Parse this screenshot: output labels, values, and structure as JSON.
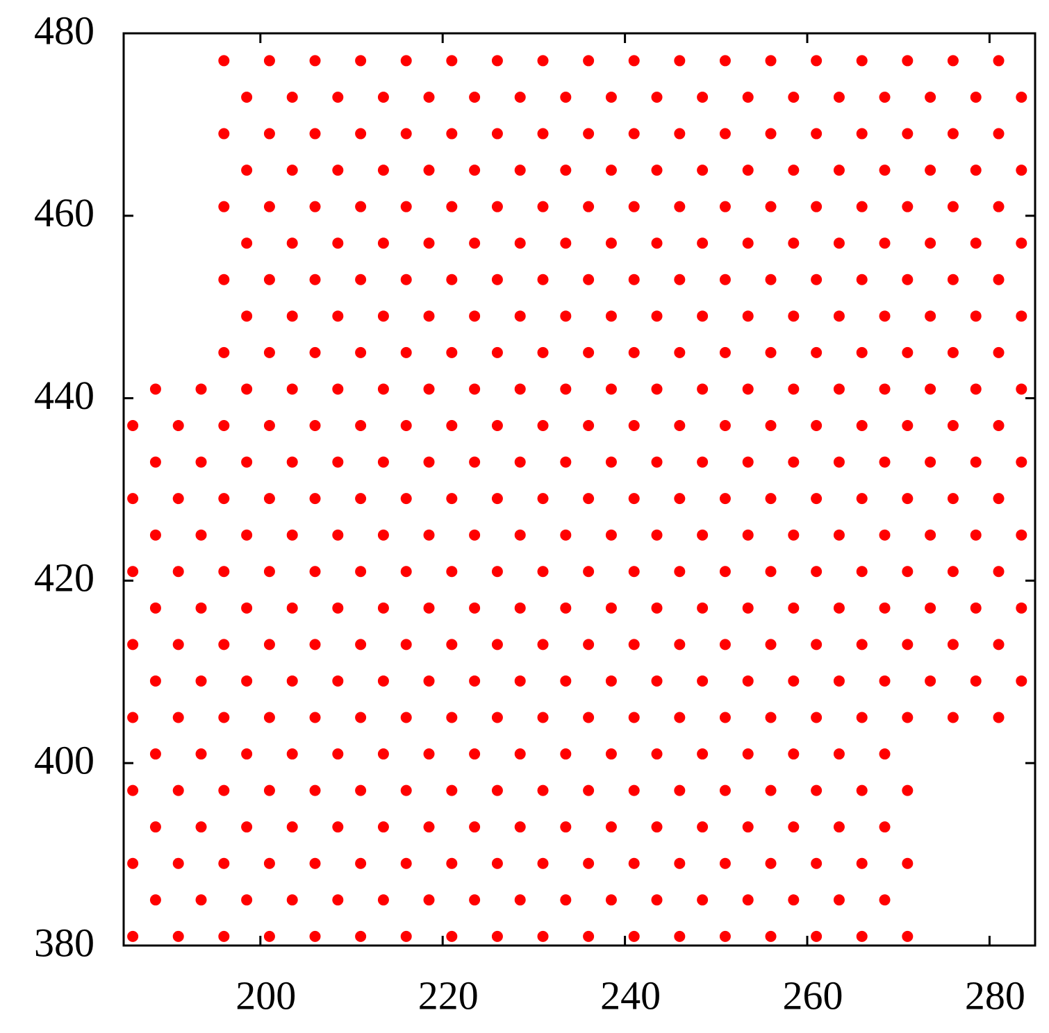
{
  "chart_data": {
    "type": "scatter",
    "color": "#ff0000",
    "xlim": [
      185,
      285
    ],
    "ylim": [
      380,
      480
    ],
    "xticks": [
      200,
      220,
      240,
      260,
      280
    ],
    "yticks": [
      380,
      400,
      420,
      440,
      460,
      480
    ],
    "x": [
      186,
      191,
      196,
      201,
      206,
      211,
      216,
      221,
      226,
      231,
      236,
      241,
      246,
      251,
      256,
      261,
      266,
      271,
      188.5,
      193.5,
      198.5,
      203.5,
      208.5,
      213.5,
      218.5,
      223.5,
      228.5,
      233.5,
      238.5,
      243.5,
      248.5,
      253.5,
      258.5,
      263.5,
      268.5,
      186,
      191,
      196,
      201,
      206,
      211,
      216,
      221,
      226,
      231,
      236,
      241,
      246,
      251,
      256,
      261,
      266,
      271,
      188.5,
      193.5,
      198.5,
      203.5,
      208.5,
      213.5,
      218.5,
      223.5,
      228.5,
      233.5,
      238.5,
      243.5,
      248.5,
      253.5,
      258.5,
      263.5,
      268.5,
      186,
      191,
      196,
      201,
      206,
      211,
      216,
      221,
      226,
      231,
      236,
      241,
      246,
      251,
      256,
      261,
      266,
      271,
      188.5,
      193.5,
      198.5,
      203.5,
      208.5,
      213.5,
      218.5,
      223.5,
      228.5,
      233.5,
      238.5,
      243.5,
      248.5,
      253.5,
      258.5,
      263.5,
      268.5,
      186,
      191,
      196,
      201,
      206,
      211,
      216,
      221,
      226,
      231,
      236,
      241,
      246,
      251,
      256,
      261,
      266,
      271,
      276,
      281,
      188.5,
      193.5,
      198.5,
      203.5,
      208.5,
      213.5,
      218.5,
      223.5,
      228.5,
      233.5,
      238.5,
      243.5,
      248.5,
      253.5,
      258.5,
      263.5,
      268.5,
      273.5,
      278.5,
      283.5,
      186,
      191,
      196,
      201,
      206,
      211,
      216,
      221,
      226,
      231,
      236,
      241,
      246,
      251,
      256,
      261,
      266,
      271,
      276,
      281,
      188.5,
      193.5,
      198.5,
      203.5,
      208.5,
      213.5,
      218.5,
      223.5,
      228.5,
      233.5,
      238.5,
      243.5,
      248.5,
      253.5,
      258.5,
      263.5,
      268.5,
      273.5,
      278.5,
      283.5,
      186,
      191,
      196,
      201,
      206,
      211,
      216,
      221,
      226,
      231,
      236,
      241,
      246,
      251,
      256,
      261,
      266,
      271,
      276,
      281,
      188.5,
      193.5,
      198.5,
      203.5,
      208.5,
      213.5,
      218.5,
      223.5,
      228.5,
      233.5,
      238.5,
      243.5,
      248.5,
      253.5,
      258.5,
      263.5,
      268.5,
      273.5,
      278.5,
      283.5,
      186,
      191,
      196,
      201,
      206,
      211,
      216,
      221,
      226,
      231,
      236,
      241,
      246,
      251,
      256,
      261,
      266,
      271,
      276,
      281,
      188.5,
      193.5,
      198.5,
      203.5,
      208.5,
      213.5,
      218.5,
      223.5,
      228.5,
      233.5,
      238.5,
      243.5,
      248.5,
      253.5,
      258.5,
      263.5,
      268.5,
      273.5,
      278.5,
      283.5,
      186,
      191,
      196,
      201,
      206,
      211,
      216,
      221,
      226,
      231,
      236,
      241,
      246,
      251,
      256,
      261,
      266,
      271,
      276,
      281,
      188.5,
      193.5,
      198.5,
      203.5,
      208.5,
      213.5,
      218.5,
      223.5,
      228.5,
      233.5,
      238.5,
      243.5,
      248.5,
      253.5,
      258.5,
      263.5,
      268.5,
      273.5,
      278.5,
      283.5,
      196,
      201,
      206,
      211,
      216,
      221,
      226,
      231,
      236,
      241,
      246,
      251,
      256,
      261,
      266,
      271,
      276,
      281,
      198.5,
      203.5,
      208.5,
      213.5,
      218.5,
      223.5,
      228.5,
      233.5,
      238.5,
      243.5,
      248.5,
      253.5,
      258.5,
      263.5,
      268.5,
      273.5,
      278.5,
      283.5,
      196,
      201,
      206,
      211,
      216,
      221,
      226,
      231,
      236,
      241,
      246,
      251,
      256,
      261,
      266,
      271,
      276,
      281,
      198.5,
      203.5,
      208.5,
      213.5,
      218.5,
      223.5,
      228.5,
      233.5,
      238.5,
      243.5,
      248.5,
      253.5,
      258.5,
      263.5,
      268.5,
      273.5,
      278.5,
      283.5,
      196,
      201,
      206,
      211,
      216,
      221,
      226,
      231,
      236,
      241,
      246,
      251,
      256,
      261,
      266,
      271,
      276,
      281,
      198.5,
      203.5,
      208.5,
      213.5,
      218.5,
      223.5,
      228.5,
      233.5,
      238.5,
      243.5,
      248.5,
      253.5,
      258.5,
      263.5,
      268.5,
      273.5,
      278.5,
      283.5,
      196,
      201,
      206,
      211,
      216,
      221,
      226,
      231,
      236,
      241,
      246,
      251,
      256,
      261,
      266,
      271,
      276,
      281,
      198.5,
      203.5,
      208.5,
      213.5,
      218.5,
      223.5,
      228.5,
      233.5,
      238.5,
      243.5,
      248.5,
      253.5,
      258.5,
      263.5,
      268.5,
      273.5,
      278.5,
      283.5,
      196,
      201,
      206,
      211,
      216,
      221,
      226,
      231,
      236,
      241,
      246,
      251,
      256,
      261,
      266,
      271,
      276,
      281
    ],
    "y": [
      381,
      381,
      381,
      381,
      381,
      381,
      381,
      381,
      381,
      381,
      381,
      381,
      381,
      381,
      381,
      381,
      381,
      381,
      385,
      385,
      385,
      385,
      385,
      385,
      385,
      385,
      385,
      385,
      385,
      385,
      385,
      385,
      385,
      385,
      385,
      389,
      389,
      389,
      389,
      389,
      389,
      389,
      389,
      389,
      389,
      389,
      389,
      389,
      389,
      389,
      389,
      389,
      389,
      393,
      393,
      393,
      393,
      393,
      393,
      393,
      393,
      393,
      393,
      393,
      393,
      393,
      393,
      393,
      393,
      393,
      397,
      397,
      397,
      397,
      397,
      397,
      397,
      397,
      397,
      397,
      397,
      397,
      397,
      397,
      397,
      397,
      397,
      397,
      401,
      401,
      401,
      401,
      401,
      401,
      401,
      401,
      401,
      401,
      401,
      401,
      401,
      401,
      401,
      401,
      401,
      405,
      405,
      405,
      405,
      405,
      405,
      405,
      405,
      405,
      405,
      405,
      405,
      405,
      405,
      405,
      405,
      405,
      405,
      405,
      405,
      409,
      409,
      409,
      409,
      409,
      409,
      409,
      409,
      409,
      409,
      409,
      409,
      409,
      409,
      409,
      409,
      409,
      409,
      409,
      409,
      413,
      413,
      413,
      413,
      413,
      413,
      413,
      413,
      413,
      413,
      413,
      413,
      413,
      413,
      413,
      413,
      413,
      413,
      413,
      413,
      417,
      417,
      417,
      417,
      417,
      417,
      417,
      417,
      417,
      417,
      417,
      417,
      417,
      417,
      417,
      417,
      417,
      417,
      417,
      417,
      421,
      421,
      421,
      421,
      421,
      421,
      421,
      421,
      421,
      421,
      421,
      421,
      421,
      421,
      421,
      421,
      421,
      421,
      421,
      421,
      425,
      425,
      425,
      425,
      425,
      425,
      425,
      425,
      425,
      425,
      425,
      425,
      425,
      425,
      425,
      425,
      425,
      425,
      425,
      425,
      429,
      429,
      429,
      429,
      429,
      429,
      429,
      429,
      429,
      429,
      429,
      429,
      429,
      429,
      429,
      429,
      429,
      429,
      429,
      429,
      433,
      433,
      433,
      433,
      433,
      433,
      433,
      433,
      433,
      433,
      433,
      433,
      433,
      433,
      433,
      433,
      433,
      433,
      433,
      433,
      437,
      437,
      437,
      437,
      437,
      437,
      437,
      437,
      437,
      437,
      437,
      437,
      437,
      437,
      437,
      437,
      437,
      437,
      437,
      437,
      441,
      441,
      441,
      441,
      441,
      441,
      441,
      441,
      441,
      441,
      441,
      441,
      441,
      441,
      441,
      441,
      441,
      441,
      441,
      441,
      445,
      445,
      445,
      445,
      445,
      445,
      445,
      445,
      445,
      445,
      445,
      445,
      445,
      445,
      445,
      445,
      445,
      445,
      449,
      449,
      449,
      449,
      449,
      449,
      449,
      449,
      449,
      449,
      449,
      449,
      449,
      449,
      449,
      449,
      449,
      449,
      453,
      453,
      453,
      453,
      453,
      453,
      453,
      453,
      453,
      453,
      453,
      453,
      453,
      453,
      453,
      453,
      453,
      453,
      457,
      457,
      457,
      457,
      457,
      457,
      457,
      457,
      457,
      457,
      457,
      457,
      457,
      457,
      457,
      457,
      457,
      457,
      461,
      461,
      461,
      461,
      461,
      461,
      461,
      461,
      461,
      461,
      461,
      461,
      461,
      461,
      461,
      461,
      461,
      461,
      465,
      465,
      465,
      465,
      465,
      465,
      465,
      465,
      465,
      465,
      465,
      465,
      465,
      465,
      465,
      465,
      465,
      465,
      469,
      469,
      469,
      469,
      469,
      469,
      469,
      469,
      469,
      469,
      469,
      469,
      469,
      469,
      469,
      469,
      469,
      469,
      473,
      473,
      473,
      473,
      473,
      473,
      473,
      473,
      473,
      473,
      473,
      473,
      473,
      473,
      473,
      473,
      473,
      473,
      477,
      477,
      477,
      477,
      477,
      477,
      477,
      477,
      477,
      477,
      477,
      477,
      477,
      477,
      477,
      477,
      477,
      477
    ]
  }
}
